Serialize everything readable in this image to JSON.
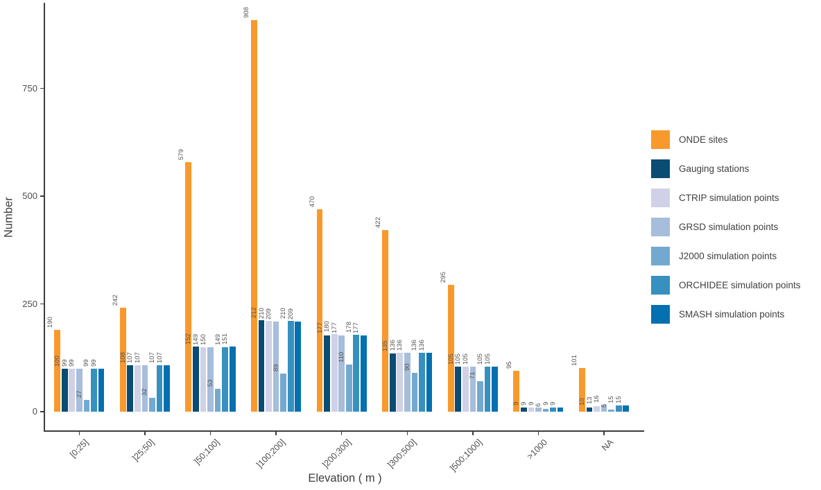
{
  "chart_data": {
    "type": "bar",
    "title": "",
    "xlabel": "Elevation ( m )",
    "ylabel": "Number",
    "ylim": [
      0,
      950
    ],
    "yticks": [
      0,
      250,
      500,
      750
    ],
    "grid": false,
    "legend_position": "right",
    "bar_value_labels": true,
    "x_tick_rotation": 45,
    "categories": [
      "[0;25]",
      "]25;50]",
      "]50;100]",
      "]100;200]",
      "]200;300]",
      "]300;500]",
      "]500;1000]",
      ">1000",
      "NA"
    ],
    "series": [
      {
        "name": "ONDE sites",
        "color": "#F9992C",
        "values": [
          190,
          242,
          579,
          908,
          470,
          422,
          295,
          95,
          101
        ]
      },
      {
        "name": "Gauging stations",
        "color": "#0A4C74",
        "values": [
          100,
          108,
          152,
          212,
          177,
          135,
          105,
          9,
          10
        ]
      },
      {
        "name": "CTRIP simulation points",
        "color": "#D0D1E6",
        "values": [
          99,
          107,
          149,
          210,
          180,
          136,
          105,
          9,
          13
        ]
      },
      {
        "name": "GRSD simulation points",
        "color": "#A6BDDB",
        "values": [
          99,
          107,
          150,
          209,
          177,
          136,
          105,
          9,
          16
        ]
      },
      {
        "name": "J2000 simulation points",
        "color": "#74A9CF",
        "values": [
          27,
          32,
          53,
          89,
          110,
          90,
          71,
          6,
          5
        ]
      },
      {
        "name": "ORCHIDEE simulation points",
        "color": "#3690C0",
        "values": [
          99,
          107,
          149,
          210,
          178,
          136,
          105,
          9,
          15
        ]
      },
      {
        "name": "SMASH simulation points",
        "color": "#0570B0",
        "values": [
          99,
          107,
          151,
          209,
          177,
          136,
          105,
          9,
          15
        ]
      }
    ],
    "text_colors": {
      "axis_title": "#3d3d3d",
      "tick_label": "#4d4d4d",
      "value_label": "#555555",
      "axis_line": "#3c3c3c"
    }
  }
}
